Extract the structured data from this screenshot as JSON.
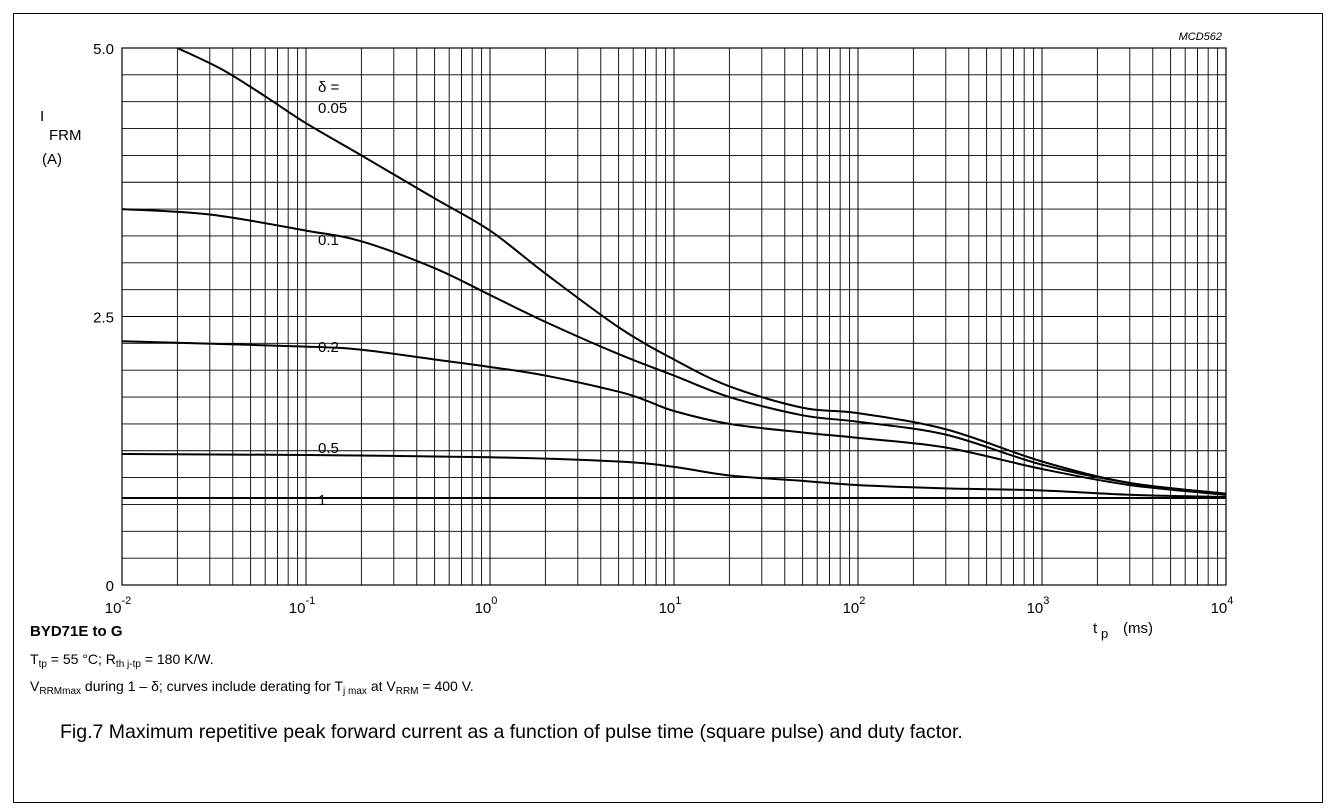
{
  "chart_data": {
    "type": "line",
    "code": "MCD562",
    "ylabel": {
      "symbol": "I",
      "sub": "FRM",
      "unit": "(A)"
    },
    "xlabel": {
      "symbol": "t",
      "sub": "p",
      "unit": "(ms)"
    },
    "x_scale": "log",
    "xlim": [
      0.01,
      10000
    ],
    "ylim": [
      0,
      5
    ],
    "y_ticks": [
      "0",
      "2.5",
      "5.0"
    ],
    "x_ticks": [
      {
        "base": "10",
        "exp": "-2"
      },
      {
        "base": "10",
        "exp": "-1"
      },
      {
        "base": "10",
        "exp": "0"
      },
      {
        "base": "10",
        "exp": "1"
      },
      {
        "base": "10",
        "exp": "2"
      },
      {
        "base": "10",
        "exp": "3"
      },
      {
        "base": "10",
        "exp": "4"
      }
    ],
    "grid": true,
    "delta_label": "δ =",
    "series": [
      {
        "name": "0.05",
        "x": [
          0.02,
          0.035,
          0.06,
          0.1,
          0.2,
          0.5,
          1,
          2,
          5,
          10,
          20,
          50,
          100,
          300,
          1000,
          3000,
          10000
        ],
        "y": [
          5.0,
          4.8,
          4.55,
          4.3,
          4.0,
          3.6,
          3.3,
          2.9,
          2.4,
          2.1,
          1.85,
          1.65,
          1.6,
          1.45,
          1.15,
          0.95,
          0.85
        ]
      },
      {
        "name": "0.1",
        "x": [
          0.01,
          0.03,
          0.1,
          0.2,
          0.5,
          1,
          2,
          5,
          10,
          20,
          50,
          100,
          300,
          1000,
          3000,
          10000
        ],
        "y": [
          3.5,
          3.45,
          3.3,
          3.2,
          2.95,
          2.7,
          2.45,
          2.15,
          1.95,
          1.75,
          1.58,
          1.52,
          1.4,
          1.12,
          0.95,
          0.85
        ]
      },
      {
        "name": "0.2",
        "x": [
          0.01,
          0.1,
          0.2,
          0.5,
          1,
          2,
          5,
          7,
          10,
          20,
          50,
          100,
          300,
          1000,
          3000,
          10000
        ],
        "y": [
          2.27,
          2.22,
          2.19,
          2.1,
          2.03,
          1.95,
          1.8,
          1.72,
          1.62,
          1.5,
          1.42,
          1.37,
          1.28,
          1.08,
          0.93,
          0.84
        ]
      },
      {
        "name": "0.5",
        "x": [
          0.01,
          0.1,
          1,
          5,
          10,
          20,
          50,
          100,
          300,
          1000,
          3000,
          10000
        ],
        "y": [
          1.22,
          1.21,
          1.19,
          1.15,
          1.1,
          1.02,
          0.97,
          0.93,
          0.9,
          0.88,
          0.84,
          0.82
        ]
      },
      {
        "name": "1",
        "x": [
          0.01,
          10000
        ],
        "y": [
          0.81,
          0.81
        ]
      }
    ]
  },
  "conditions": {
    "title": "BYD71E to  G",
    "line1": {
      "t": "T",
      "t_sub": "tp",
      "t_text": " = 55 °C; R",
      "r_sub": "th j-tp",
      "r_text": " = 180 K/W."
    },
    "line2": {
      "v": "V",
      "v_sub": "RRMmax",
      "text1": " during 1 – δ; curves include derating for T",
      "tj_sub": "j max",
      "text2": " at V",
      "vr_sub": "RRM",
      "text3": " = 400 V."
    }
  },
  "caption": "Fig.7  Maximum repetitive peak forward current as a function of pulse time (square pulse) and duty factor."
}
